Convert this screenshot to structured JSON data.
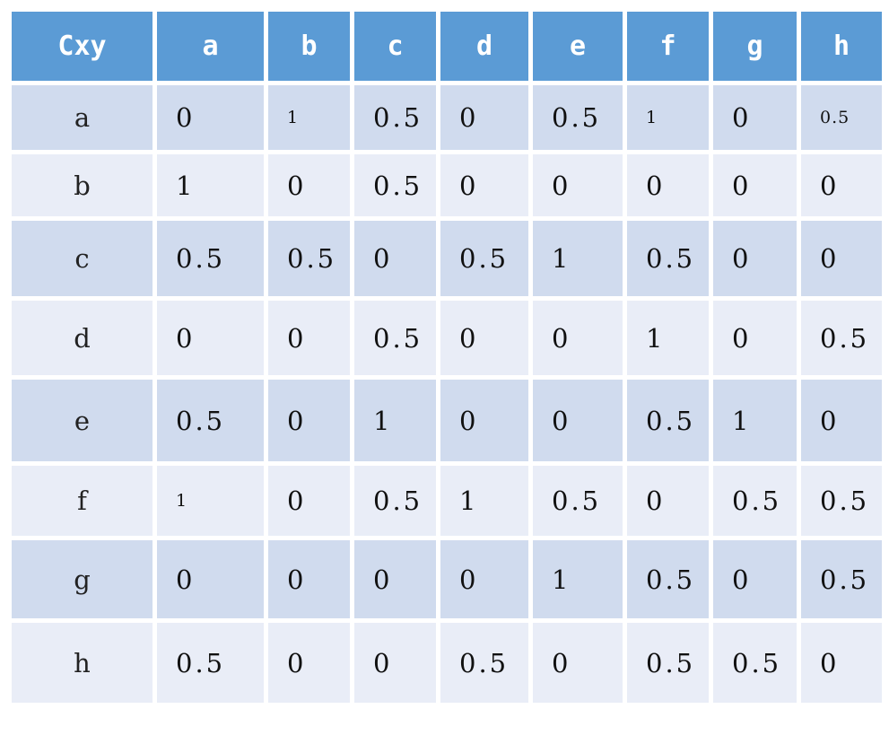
{
  "table": {
    "corner": "Cxy",
    "columns": [
      "a",
      "b",
      "c",
      "d",
      "e",
      "f",
      "g",
      "h"
    ],
    "rows": [
      {
        "label": "a",
        "values": [
          "0",
          "1",
          "0.5",
          "0",
          "0.5",
          "1",
          "0",
          "0.5"
        ]
      },
      {
        "label": "b",
        "values": [
          "1",
          "0",
          "0.5",
          "0",
          "0",
          "0",
          "0",
          "0"
        ]
      },
      {
        "label": "c",
        "values": [
          "0.5",
          "0.5",
          "0",
          "0.5",
          "1",
          "0.5",
          "0",
          "0"
        ]
      },
      {
        "label": "d",
        "values": [
          "0",
          "0",
          "0.5",
          "0",
          "0",
          "1",
          "0",
          "0.5"
        ]
      },
      {
        "label": "e",
        "values": [
          "0.5",
          "0",
          "1",
          "0",
          "0",
          "0.5",
          "1",
          "0"
        ]
      },
      {
        "label": "f",
        "values": [
          "1",
          "0",
          "0.5",
          "1",
          "0.5",
          "0",
          "0.5",
          "0.5"
        ]
      },
      {
        "label": "g",
        "values": [
          "0",
          "0",
          "0",
          "0",
          "1",
          "0.5",
          "0",
          "0.5"
        ]
      },
      {
        "label": "h",
        "values": [
          "0.5",
          "0",
          "0",
          "0.5",
          "0",
          "0.5",
          "0.5",
          "0"
        ]
      }
    ]
  }
}
